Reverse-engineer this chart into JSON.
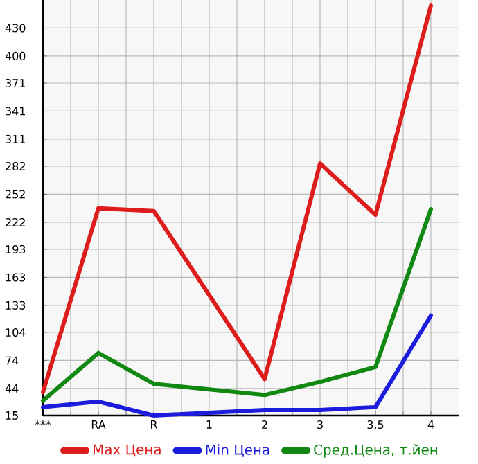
{
  "chart_data": {
    "type": "line",
    "categories": [
      "***",
      "RA",
      "R",
      "1",
      "2",
      "3",
      "3,5",
      "4"
    ],
    "series": [
      {
        "name": "Max Цена",
        "color": "#dd1c1c",
        "values": [
          40,
          237,
          234,
          144,
          54,
          285,
          230,
          454
        ]
      },
      {
        "name": "Min Цена",
        "color": "#1c1cdd",
        "values": [
          24,
          30,
          15,
          18,
          21,
          21,
          24,
          122
        ]
      },
      {
        "name": "Сред.Цена, т.йен",
        "color": "#118811",
        "values": [
          31,
          82,
          49,
          43,
          37,
          51,
          67,
          236
        ]
      }
    ],
    "ylim": [
      15,
      460
    ],
    "yticks": [
      15,
      44,
      74,
      104,
      133,
      163,
      193,
      222,
      252,
      282,
      311,
      341,
      371,
      400,
      430
    ],
    "grid": true,
    "legend": "bottom",
    "marker": "none",
    "line_style": "solid"
  }
}
